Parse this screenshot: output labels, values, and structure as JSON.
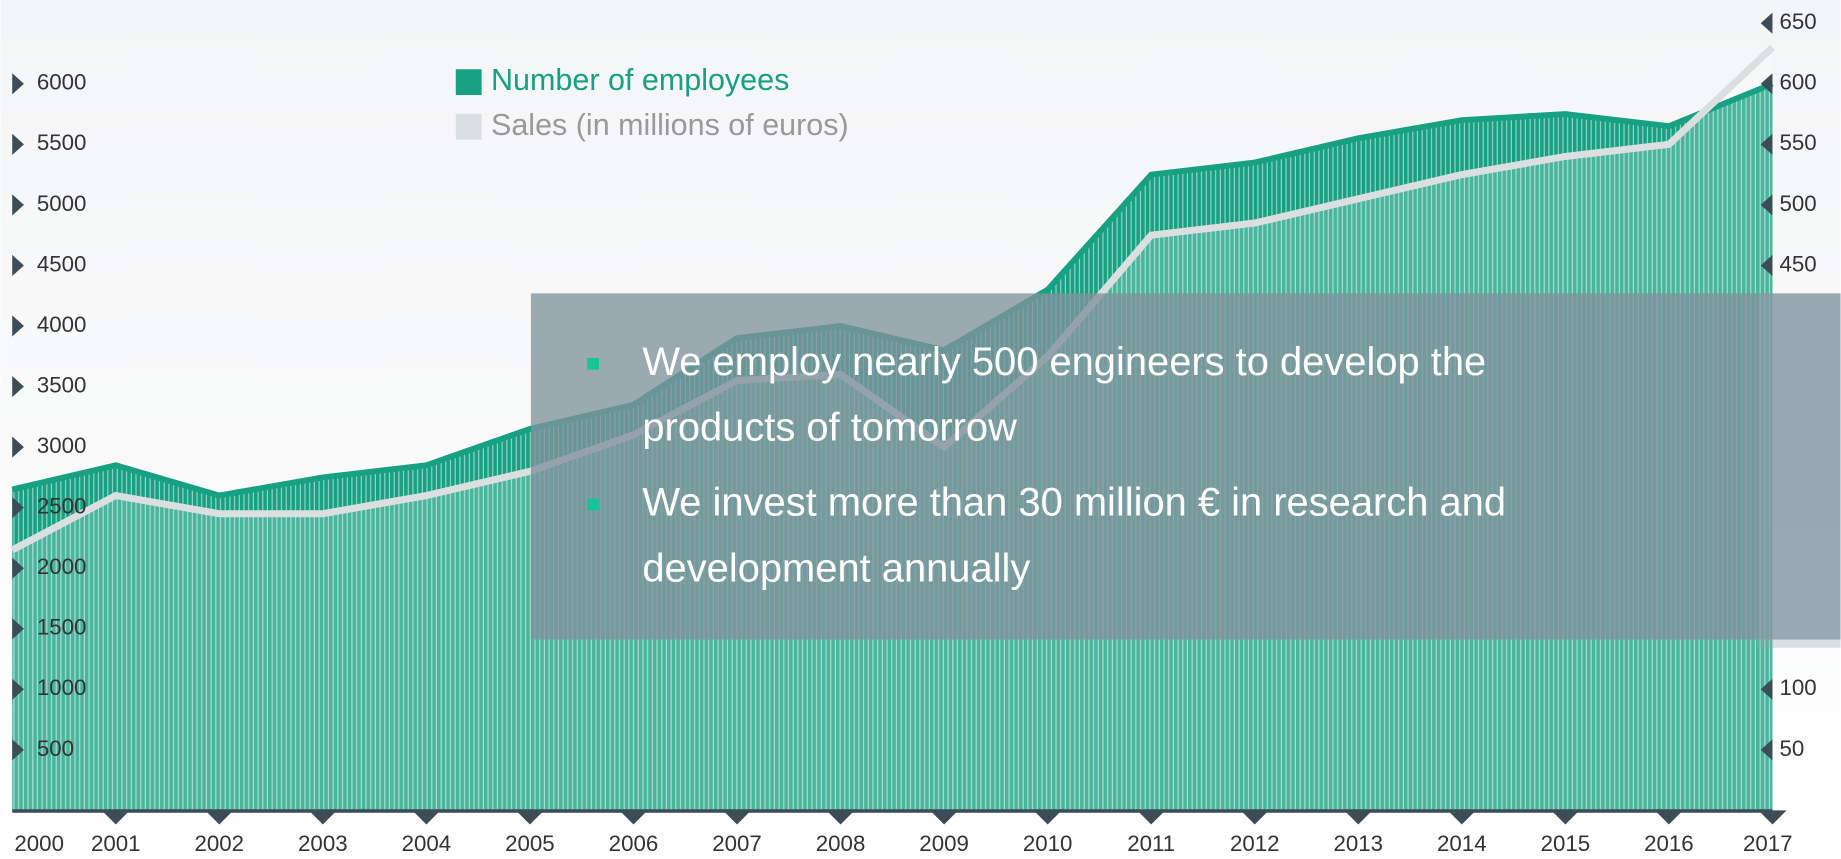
{
  "chart_data": {
    "type": "area",
    "x": [
      2000,
      2001,
      2002,
      2003,
      2004,
      2005,
      2006,
      2007,
      2008,
      2009,
      2010,
      2011,
      2012,
      2013,
      2014,
      2015,
      2016,
      2017
    ],
    "xlim": [
      2000,
      2017
    ],
    "ylim": [
      0,
      6500
    ],
    "yticks": [
      500,
      1000,
      1500,
      2000,
      2500,
      3000,
      3500,
      4000,
      4500,
      5000,
      5500,
      6000
    ],
    "y2lim": [
      0,
      650
    ],
    "y2ticks": [
      50,
      100,
      450,
      500,
      550,
      600,
      650
    ],
    "series": [
      {
        "name": "Number of employees",
        "color": "#17a082",
        "values": [
          2650,
          2850,
          2600,
          2750,
          2850,
          3150,
          3350,
          3900,
          4000,
          3800,
          4300,
          5250,
          5350,
          5550,
          5700,
          5750,
          5650,
          6000
        ]
      },
      {
        "name": "Sales (in millions of euros)",
        "color": "#dcdfe0",
        "axis": "y2",
        "values": [
          215,
          260,
          245,
          245,
          260,
          280,
          310,
          355,
          360,
          300,
          375,
          475,
          485,
          505,
          525,
          540,
          550,
          630
        ]
      }
    ],
    "annotations": [
      "We employ nearly 500 engineers to develop the products of tomorrow",
      "We invest more than 30 million € in research and development annually"
    ]
  }
}
